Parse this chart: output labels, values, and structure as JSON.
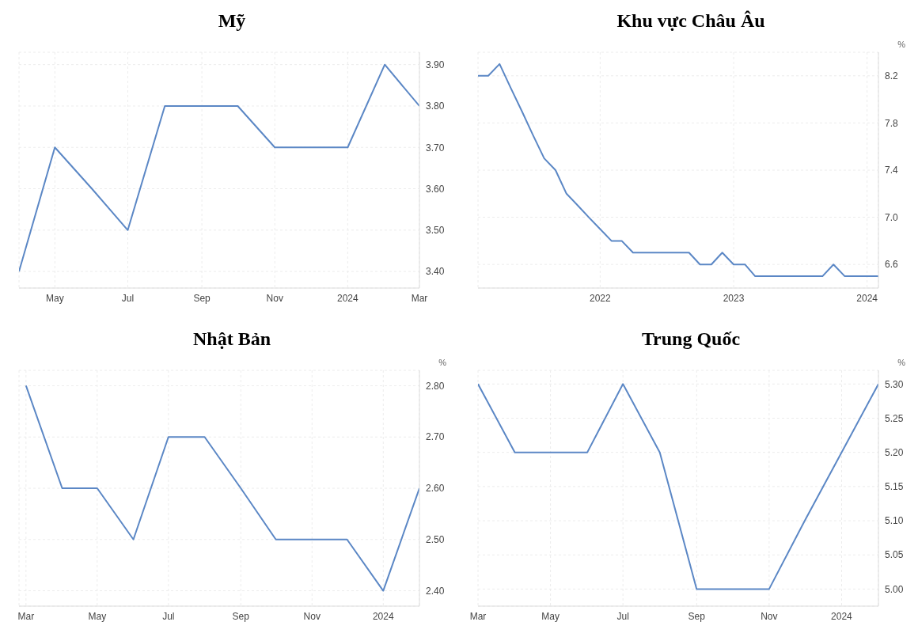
{
  "chart_data": [
    {
      "type": "line",
      "title": "Mỹ",
      "x": [
        "2023-04",
        "2023-05",
        "2023-06",
        "2023-07",
        "2023-08",
        "2023-09",
        "2023-10",
        "2023-11",
        "2023-12",
        "2024-01",
        "2024-02",
        "2024-03"
      ],
      "series": [
        {
          "color": "#5b87c5",
          "values": [
            3.4,
            3.7,
            3.6,
            3.5,
            3.8,
            3.8,
            3.8,
            3.7,
            3.7,
            3.7,
            3.9,
            3.8
          ]
        }
      ],
      "xlim": [
        "2023-04",
        "2024-03"
      ],
      "xticks": [
        {
          "value": "2023-05",
          "label": "May"
        },
        {
          "value": "2023-07",
          "label": "Jul"
        },
        {
          "value": "2023-09",
          "label": "Sep"
        },
        {
          "value": "2023-11",
          "label": "Nov"
        },
        {
          "value": "2024-01",
          "label": "2024"
        },
        {
          "value": "2024-03",
          "label": "Mar"
        }
      ],
      "ylim": [
        3.36,
        3.93
      ],
      "yticks": [
        {
          "value": 3.4,
          "label": "3.40"
        },
        {
          "value": 3.5,
          "label": "3.50"
        },
        {
          "value": 3.6,
          "label": "3.60"
        },
        {
          "value": 3.7,
          "label": "3.70"
        },
        {
          "value": 3.8,
          "label": "3.80"
        },
        {
          "value": 3.9,
          "label": "3.90"
        }
      ],
      "grid": true,
      "legend": false
    },
    {
      "type": "line",
      "title": "Khu vực Châu Âu",
      "ylabel": "%",
      "x": [
        "2021-02",
        "2021-03",
        "2021-04",
        "2021-05",
        "2021-06",
        "2021-07",
        "2021-08",
        "2021-09",
        "2021-10",
        "2021-11",
        "2021-12",
        "2022-01",
        "2022-02",
        "2022-03",
        "2022-04",
        "2022-05",
        "2022-06",
        "2022-07",
        "2022-08",
        "2022-09",
        "2022-10",
        "2022-11",
        "2022-12",
        "2023-01",
        "2023-02",
        "2023-03",
        "2023-04",
        "2023-05",
        "2023-06",
        "2023-07",
        "2023-08",
        "2023-09",
        "2023-10",
        "2023-11",
        "2023-12",
        "2024-01",
        "2024-02"
      ],
      "series": [
        {
          "color": "#5b87c5",
          "values": [
            8.2,
            8.2,
            8.3,
            8.1,
            7.9,
            7.7,
            7.5,
            7.4,
            7.2,
            7.1,
            7.0,
            6.9,
            6.8,
            6.8,
            6.7,
            6.7,
            6.7,
            6.7,
            6.7,
            6.7,
            6.6,
            6.6,
            6.7,
            6.6,
            6.6,
            6.5,
            6.5,
            6.5,
            6.5,
            6.5,
            6.5,
            6.5,
            6.6,
            6.5,
            6.5,
            6.5,
            6.5
          ]
        }
      ],
      "xlim": [
        "2021-02",
        "2024-02"
      ],
      "xticks": [
        {
          "value": "2022-01",
          "label": "2022"
        },
        {
          "value": "2023-01",
          "label": "2023"
        },
        {
          "value": "2024-01",
          "label": "2024"
        }
      ],
      "ylim": [
        6.4,
        8.4
      ],
      "yticks": [
        6.6,
        {
          "value": 7.0,
          "label": "7.0"
        },
        7.4,
        7.8,
        8.2
      ],
      "grid": true,
      "legend": false
    },
    {
      "type": "line",
      "title": "Nhật Bản",
      "ylabel": "%",
      "x": [
        "2023-03",
        "2023-04",
        "2023-05",
        "2023-06",
        "2023-07",
        "2023-08",
        "2023-09",
        "2023-10",
        "2023-11",
        "2023-12",
        "2024-01",
        "2024-02"
      ],
      "series": [
        {
          "color": "#5b87c5",
          "values": [
            2.8,
            2.6,
            2.6,
            2.5,
            2.7,
            2.7,
            2.6,
            2.5,
            2.5,
            2.5,
            2.4,
            2.6
          ]
        }
      ],
      "xlim": [
        "2023-02-23",
        "2024-02"
      ],
      "xticks": [
        {
          "value": "2023-03",
          "label": "Mar"
        },
        {
          "value": "2023-05",
          "label": "May"
        },
        {
          "value": "2023-07",
          "label": "Jul"
        },
        {
          "value": "2023-09",
          "label": "Sep"
        },
        {
          "value": "2023-11",
          "label": "Nov"
        },
        {
          "value": "2024-01",
          "label": "2024"
        }
      ],
      "ylim": [
        2.37,
        2.83
      ],
      "yticks": [
        {
          "value": 2.4,
          "label": "2.40"
        },
        {
          "value": 2.5,
          "label": "2.50"
        },
        {
          "value": 2.6,
          "label": "2.60"
        },
        {
          "value": 2.7,
          "label": "2.70"
        },
        {
          "value": 2.8,
          "label": "2.80"
        }
      ],
      "grid": true,
      "legend": false
    },
    {
      "type": "line",
      "title": "Trung Quốc",
      "ylabel": "%",
      "x": [
        "2023-03",
        "2023-04",
        "2023-05",
        "2023-06",
        "2023-07",
        "2023-08",
        "2023-09",
        "2023-10",
        "2023-11",
        "2023-12",
        "2024-01",
        "2024-02"
      ],
      "series": [
        {
          "color": "#5b87c5",
          "values": [
            5.3,
            5.2,
            5.2,
            5.2,
            5.3,
            5.2,
            5.0,
            5.0,
            5.0,
            5.1,
            5.2,
            5.3
          ]
        }
      ],
      "xlim": [
        "2023-03",
        "2024-02"
      ],
      "xticks": [
        {
          "value": "2023-03",
          "label": "Mar"
        },
        {
          "value": "2023-05",
          "label": "May"
        },
        {
          "value": "2023-07",
          "label": "Jul"
        },
        {
          "value": "2023-09",
          "label": "Sep"
        },
        {
          "value": "2023-11",
          "label": "Nov"
        },
        {
          "value": "2024-01",
          "label": "2024"
        }
      ],
      "ylim": [
        4.975,
        5.32
      ],
      "yticks": [
        {
          "value": 5.0,
          "label": "5.00"
        },
        {
          "value": 5.05,
          "label": "5.05"
        },
        {
          "value": 5.1,
          "label": "5.10"
        },
        {
          "value": 5.15,
          "label": "5.15"
        },
        {
          "value": 5.2,
          "label": "5.20"
        },
        {
          "value": 5.25,
          "label": "5.25"
        },
        {
          "value": 5.3,
          "label": "5.30"
        }
      ],
      "grid": true,
      "legend": false
    }
  ]
}
